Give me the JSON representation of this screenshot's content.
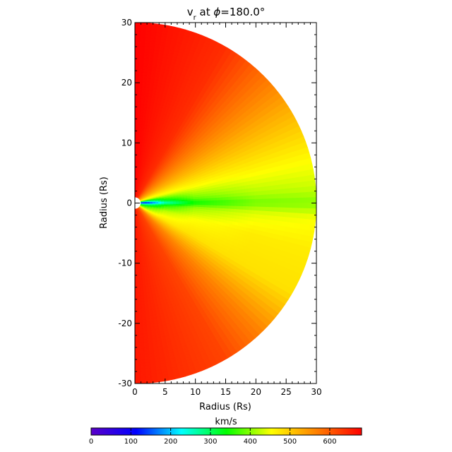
{
  "chart_data": {
    "type": "heatmap",
    "title": "v_r at φ=180.0°",
    "title_parts": {
      "v": "v",
      "sub": "r",
      "rest": " at ",
      "phi": "ϕ",
      "value": "=180.0°"
    },
    "xlabel": "Radius (Rs)",
    "ylabel": "Radius (Rs)",
    "xlim": [
      0,
      30
    ],
    "ylim": [
      -30,
      30
    ],
    "x_ticks": [
      0,
      5,
      10,
      15,
      20,
      25,
      30
    ],
    "y_ticks": [
      30,
      20,
      10,
      0,
      -10,
      -20,
      -30
    ],
    "domain_shape": "half-disk",
    "domain_radius": 30,
    "inner_boundary_radius": 1,
    "colorbar": {
      "label": "km/s",
      "orientation": "horizontal",
      "position": "bottom",
      "range": [
        0,
        680
      ],
      "ticks": [
        0,
        100,
        200,
        300,
        400,
        500,
        600
      ],
      "colormap": [
        "#5a00c8",
        "#0000ff",
        "#00ffff",
        "#00ff00",
        "#ffff00",
        "#ff8000",
        "#ff0000"
      ]
    },
    "radial_profiles": {
      "radius": [
        1,
        3,
        5,
        10,
        20,
        30
      ],
      "latitude_deg": [
        90,
        60,
        45,
        30,
        15,
        5,
        0,
        -5,
        -15,
        -30,
        -45,
        -60,
        -90
      ],
      "speed": [
        [
          680,
          680,
          680,
          680,
          680,
          680
        ],
        [
          640,
          640,
          640,
          640,
          640,
          640
        ],
        [
          580,
          580,
          580,
          580,
          580,
          580
        ],
        [
          520,
          520,
          520,
          520,
          520,
          520
        ],
        [
          420,
          430,
          440,
          450,
          460,
          460
        ],
        [
          200,
          260,
          330,
          390,
          420,
          430
        ],
        [
          50,
          150,
          250,
          340,
          390,
          400
        ],
        [
          200,
          280,
          350,
          410,
          440,
          450
        ],
        [
          320,
          380,
          420,
          450,
          470,
          470
        ],
        [
          420,
          450,
          470,
          480,
          480,
          480
        ],
        [
          560,
          560,
          560,
          560,
          560,
          560
        ],
        [
          620,
          620,
          620,
          620,
          620,
          620
        ],
        [
          660,
          660,
          660,
          660,
          660,
          660
        ]
      ]
    }
  }
}
